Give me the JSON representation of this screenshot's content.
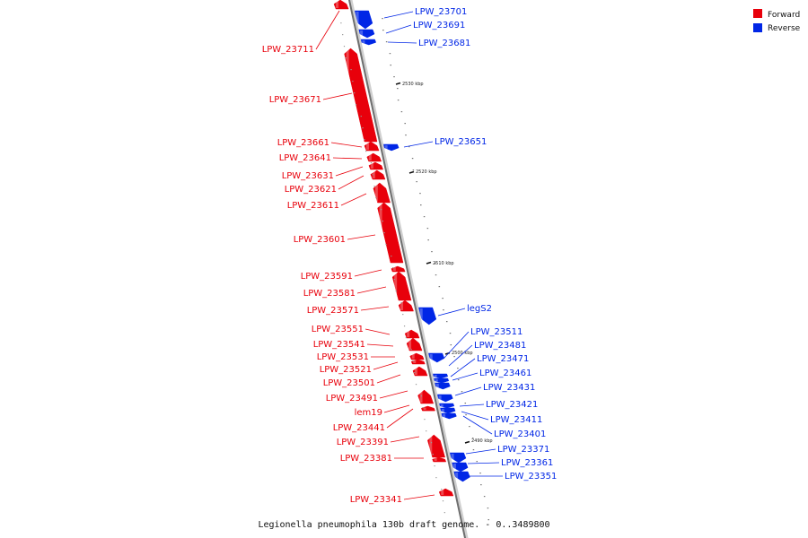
{
  "legend": {
    "forward_label": "Forward",
    "reverse_label": "Reverse",
    "forward_color": "#e8000b",
    "reverse_color": "#0026e6"
  },
  "footer_text": "Legionella pneumophila 130b draft genome. - 0..3489800",
  "scale_labels": [
    "2530 kbp",
    "2520 kbp",
    "2510 kbp",
    "2500 kbp",
    "2490 kbp"
  ],
  "genes": [
    {
      "name": "LPW_23711",
      "strand": "forward"
    },
    {
      "name": "LPW_23701",
      "strand": "reverse"
    },
    {
      "name": "LPW_23691",
      "strand": "reverse"
    },
    {
      "name": "LPW_23681",
      "strand": "reverse"
    },
    {
      "name": "LPW_23671",
      "strand": "forward"
    },
    {
      "name": "LPW_23661",
      "strand": "forward"
    },
    {
      "name": "LPW_23651",
      "strand": "reverse"
    },
    {
      "name": "LPW_23641",
      "strand": "forward"
    },
    {
      "name": "LPW_23631",
      "strand": "forward"
    },
    {
      "name": "LPW_23621",
      "strand": "forward"
    },
    {
      "name": "LPW_23611",
      "strand": "forward"
    },
    {
      "name": "LPW_23601",
      "strand": "forward"
    },
    {
      "name": "LPW_23591",
      "strand": "forward"
    },
    {
      "name": "LPW_23581",
      "strand": "forward"
    },
    {
      "name": "LPW_23571",
      "strand": "forward"
    },
    {
      "name": "legS2",
      "strand": "reverse"
    },
    {
      "name": "LPW_23551",
      "strand": "forward"
    },
    {
      "name": "LPW_23541",
      "strand": "forward"
    },
    {
      "name": "LPW_23531",
      "strand": "forward"
    },
    {
      "name": "LPW_23521",
      "strand": "forward"
    },
    {
      "name": "LPW_23511",
      "strand": "reverse"
    },
    {
      "name": "LPW_23501",
      "strand": "forward"
    },
    {
      "name": "LPW_23491",
      "strand": "forward"
    },
    {
      "name": "LPW_23481",
      "strand": "reverse"
    },
    {
      "name": "LPW_23471",
      "strand": "reverse"
    },
    {
      "name": "LPW_23461",
      "strand": "reverse"
    },
    {
      "name": "LPW_23441",
      "strand": "forward"
    },
    {
      "name": "lem19",
      "strand": "forward"
    },
    {
      "name": "LPW_23431",
      "strand": "reverse"
    },
    {
      "name": "LPW_23421",
      "strand": "reverse"
    },
    {
      "name": "LPW_23411",
      "strand": "reverse"
    },
    {
      "name": "LPW_23401",
      "strand": "reverse"
    },
    {
      "name": "LPW_23391",
      "strand": "forward"
    },
    {
      "name": "LPW_23381",
      "strand": "forward"
    },
    {
      "name": "LPW_23371",
      "strand": "reverse"
    },
    {
      "name": "LPW_23361",
      "strand": "reverse"
    },
    {
      "name": "LPW_23351",
      "strand": "reverse"
    },
    {
      "name": "LPW_23341",
      "strand": "forward"
    }
  ]
}
